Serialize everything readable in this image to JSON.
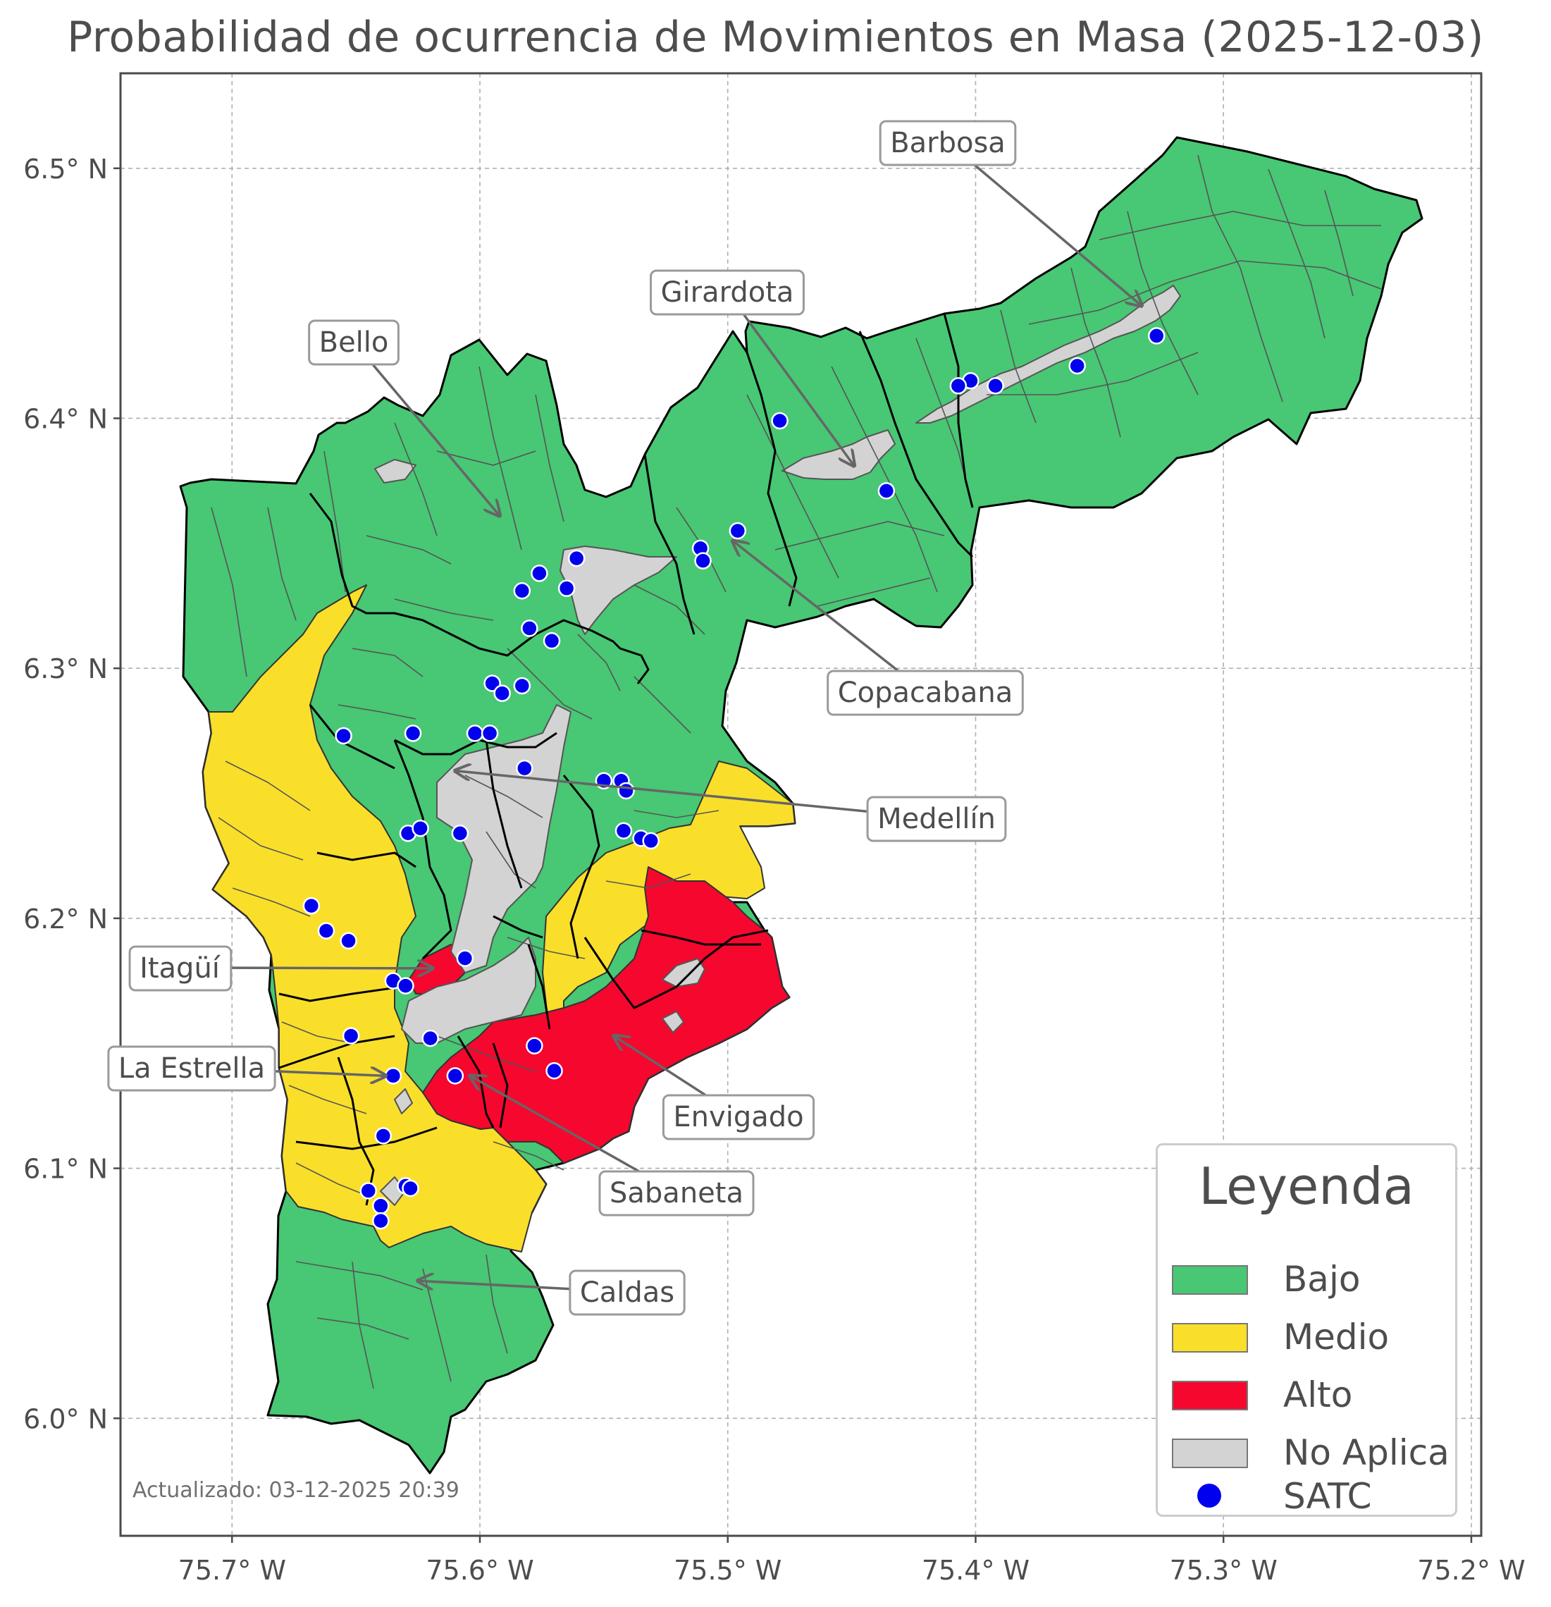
{
  "title": "Probabilidad de ocurrencia de Movimientos en Masa (2025-12-03)",
  "timestamp": "Actualizado: 03-12-2025 20:39",
  "axes": {
    "x_ticks": [
      "75.7° W",
      "75.6° W",
      "75.5° W",
      "75.4° W",
      "75.3° W",
      "75.2° W"
    ],
    "y_ticks": [
      "6.5° N",
      "6.4° N",
      "6.3° N",
      "6.2° N",
      "6.1° N",
      "6.0° N"
    ],
    "lon_range": [
      -75.745,
      -75.196
    ],
    "lat_range": [
      5.953,
      6.538
    ],
    "grid": true
  },
  "legend": {
    "title": "Leyenda",
    "items": [
      {
        "label": "Bajo",
        "color": "#48c774",
        "kind": "patch"
      },
      {
        "label": "Medio",
        "color": "#fadf2a",
        "kind": "patch"
      },
      {
        "label": "Alto",
        "color": "#f5072e",
        "kind": "patch"
      },
      {
        "label": "No Aplica",
        "color": "#d3d3d3",
        "kind": "patch"
      },
      {
        "label": "SATC",
        "color": "#0000ee",
        "kind": "point"
      }
    ]
  },
  "municipalities": [
    {
      "name": "Barbosa",
      "lon": -75.333,
      "lat": 6.445,
      "risk": "Bajo"
    },
    {
      "name": "Girardota",
      "lon": -75.449,
      "lat": 6.381,
      "risk": "Bajo"
    },
    {
      "name": "Bello",
      "lon": -75.592,
      "lat": 6.361,
      "risk": "Bajo"
    },
    {
      "name": "Copacabana",
      "lon": -75.498,
      "lat": 6.351,
      "risk": "Bajo"
    },
    {
      "name": "Medellín",
      "lon": -75.61,
      "lat": 6.259,
      "risk": "Bajo"
    },
    {
      "name": "Itagüí",
      "lon": -75.619,
      "lat": 6.18,
      "risk": "Alto"
    },
    {
      "name": "La Estrella",
      "lon": -75.638,
      "lat": 6.137,
      "risk": "Medio"
    },
    {
      "name": "Envigado",
      "lon": -75.546,
      "lat": 6.153,
      "risk": "Alto"
    },
    {
      "name": "Sabaneta",
      "lon": -75.604,
      "lat": 6.137,
      "risk": "Alto"
    },
    {
      "name": "Caldas",
      "lon": -75.625,
      "lat": 6.055,
      "risk": "Bajo"
    }
  ],
  "satc_stations": [
    [
      -75.327,
      6.433
    ],
    [
      -75.359,
      6.421
    ],
    [
      -75.392,
      6.413
    ],
    [
      -75.402,
      6.415
    ],
    [
      -75.407,
      6.413
    ],
    [
      -75.479,
      6.399
    ],
    [
      -75.436,
      6.371
    ],
    [
      -75.496,
      6.355
    ],
    [
      -75.511,
      6.348
    ],
    [
      -75.51,
      6.343
    ],
    [
      -75.561,
      6.344
    ],
    [
      -75.576,
      6.338
    ],
    [
      -75.565,
      6.332
    ],
    [
      -75.583,
      6.331
    ],
    [
      -75.58,
      6.316
    ],
    [
      -75.571,
      6.311
    ],
    [
      -75.595,
      6.294
    ],
    [
      -75.583,
      6.293
    ],
    [
      -75.591,
      6.29
    ],
    [
      -75.655,
      6.273
    ],
    [
      -75.627,
      6.274
    ],
    [
      -75.602,
      6.274
    ],
    [
      -75.596,
      6.274
    ],
    [
      -75.582,
      6.26
    ],
    [
      -75.55,
      6.255
    ],
    [
      -75.543,
      6.255
    ],
    [
      -75.541,
      6.251
    ],
    [
      -75.629,
      6.234
    ],
    [
      -75.624,
      6.236
    ],
    [
      -75.608,
      6.234
    ],
    [
      -75.542,
      6.235
    ],
    [
      -75.535,
      6.232
    ],
    [
      -75.531,
      6.231
    ],
    [
      -75.668,
      6.205
    ],
    [
      -75.662,
      6.195
    ],
    [
      -75.653,
      6.191
    ],
    [
      -75.606,
      6.184
    ],
    [
      -75.635,
      6.175
    ],
    [
      -75.63,
      6.173
    ],
    [
      -75.652,
      6.153
    ],
    [
      -75.62,
      6.152
    ],
    [
      -75.578,
      6.149
    ],
    [
      -75.57,
      6.139
    ],
    [
      -75.635,
      6.137
    ],
    [
      -75.61,
      6.137
    ],
    [
      -75.639,
      6.113
    ],
    [
      -75.63,
      6.093
    ],
    [
      -75.628,
      6.092
    ],
    [
      -75.645,
      6.091
    ],
    [
      -75.64,
      6.085
    ],
    [
      -75.64,
      6.079
    ]
  ],
  "colors": {
    "Bajo": "#48c774",
    "Medio": "#fadf2a",
    "Alto": "#f5072e",
    "No Aplica": "#d3d3d3",
    "SATC": "#0000ee",
    "boundary": "#000000"
  }
}
